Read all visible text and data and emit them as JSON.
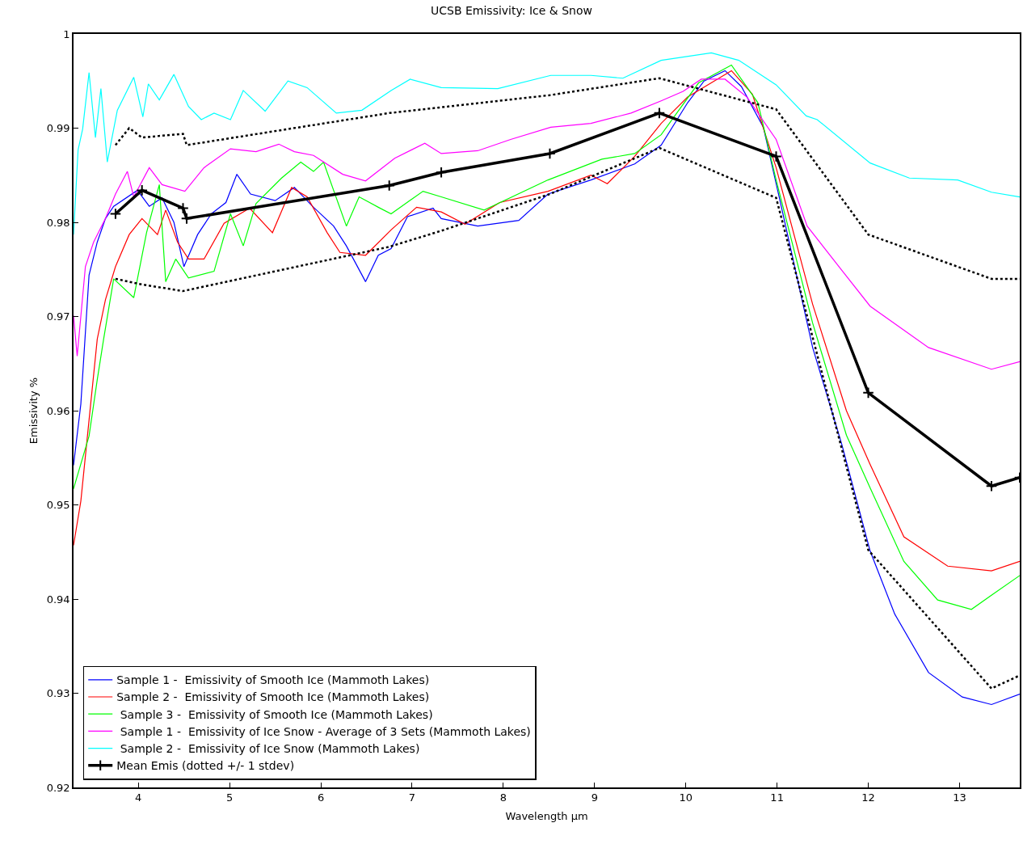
{
  "chart_data": {
    "type": "line",
    "title": "UCSB Emissivity: Ice & Snow",
    "xlabel": "Wavelength µm",
    "ylabel": "Emissivity %",
    "xlim": [
      3.29,
      13.66
    ],
    "ylim": [
      0.92,
      1
    ],
    "xticks": [
      4,
      5,
      6,
      7,
      8,
      9,
      10,
      11,
      12,
      13
    ],
    "yticks": [
      0.92,
      0.93,
      0.94,
      0.95,
      0.96,
      0.97,
      0.98,
      0.99,
      1
    ],
    "legend": "bottom left",
    "series": [
      {
        "name": "Sample 1 -  Emissivity of Smooth Ice (Mammoth Lakes)",
        "color": "#0000ff",
        "x": [
          3.29,
          3.37,
          3.46,
          3.55,
          3.64,
          3.73,
          3.99,
          4.12,
          4.26,
          4.39,
          4.5,
          4.65,
          4.8,
          4.96,
          5.08,
          5.23,
          5.5,
          5.71,
          5.92,
          6.14,
          6.28,
          6.49,
          6.63,
          6.77,
          6.95,
          7.23,
          7.32,
          7.72,
          8.17,
          8.49,
          8.96,
          9.44,
          9.73,
          10.02,
          10.2,
          10.43,
          10.61,
          10.85,
          11.03,
          11.39,
          11.71,
          12.02,
          12.29,
          12.66,
          13.03,
          13.35,
          13.66
        ],
        "values": [
          0.9542,
          0.9607,
          0.9744,
          0.9779,
          0.9804,
          0.9817,
          0.9834,
          0.9817,
          0.9826,
          0.98,
          0.9753,
          0.9787,
          0.9809,
          0.9821,
          0.9851,
          0.983,
          0.9823,
          0.9837,
          0.9816,
          0.9796,
          0.9775,
          0.9737,
          0.9765,
          0.9772,
          0.9806,
          0.9815,
          0.9804,
          0.9796,
          0.9802,
          0.983,
          0.9845,
          0.9862,
          0.9882,
          0.9927,
          0.995,
          0.9961,
          0.9944,
          0.9901,
          0.9824,
          0.9667,
          0.9564,
          0.9451,
          0.9384,
          0.9322,
          0.9296,
          0.9288,
          0.9299
        ]
      },
      {
        "name": "Sample 2 -  Emissivity of Smooth Ice (Mammoth Lakes)",
        "color": "#ff0000",
        "x": [
          3.29,
          3.37,
          3.46,
          3.55,
          3.64,
          3.75,
          3.9,
          4.04,
          4.21,
          4.3,
          4.43,
          4.55,
          4.72,
          4.94,
          5.22,
          5.47,
          5.68,
          5.85,
          6.07,
          6.21,
          6.49,
          6.77,
          7.05,
          7.32,
          7.58,
          7.96,
          8.49,
          8.96,
          9.14,
          9.44,
          9.73,
          10.02,
          10.5,
          10.73,
          10.99,
          11.39,
          11.76,
          12.02,
          12.39,
          12.87,
          13.35,
          13.66
        ],
        "values": [
          0.9457,
          0.9504,
          0.959,
          0.9676,
          0.9718,
          0.9753,
          0.9787,
          0.9804,
          0.9787,
          0.9813,
          0.9779,
          0.9761,
          0.9761,
          0.9799,
          0.9815,
          0.9789,
          0.9837,
          0.9827,
          0.9789,
          0.9768,
          0.9765,
          0.9792,
          0.9816,
          0.9811,
          0.9798,
          0.9821,
          0.9833,
          0.985,
          0.9841,
          0.987,
          0.9905,
          0.9933,
          0.9961,
          0.9936,
          0.9858,
          0.9713,
          0.96,
          0.9543,
          0.9466,
          0.9435,
          0.943,
          0.944
        ]
      },
      {
        "name": " Sample 3 -  Emissivity of Smooth Ice (Mammoth Lakes)",
        "color": "#00ff00",
        "x": [
          3.29,
          3.46,
          3.55,
          3.62,
          3.73,
          3.95,
          4.09,
          4.23,
          4.3,
          4.41,
          4.55,
          4.83,
          5.01,
          5.15,
          5.29,
          5.57,
          5.78,
          5.92,
          6.03,
          6.28,
          6.42,
          6.63,
          6.77,
          7.12,
          7.32,
          7.79,
          8.49,
          9.08,
          9.44,
          9.73,
          10.14,
          10.5,
          10.79,
          10.99,
          11.39,
          11.76,
          12.02,
          12.39,
          12.76,
          13.13,
          13.35,
          13.66
        ],
        "values": [
          0.9517,
          0.9573,
          0.9633,
          0.9676,
          0.974,
          0.972,
          0.9789,
          0.984,
          0.9737,
          0.9761,
          0.9741,
          0.9748,
          0.9809,
          0.9775,
          0.982,
          0.9847,
          0.9864,
          0.9854,
          0.9864,
          0.9796,
          0.9827,
          0.9816,
          0.9809,
          0.9833,
          0.9827,
          0.9813,
          0.9845,
          0.9867,
          0.9873,
          0.9893,
          0.9948,
          0.9967,
          0.9927,
          0.9845,
          0.9693,
          0.9574,
          0.9518,
          0.944,
          0.9399,
          0.9389,
          0.9404,
          0.9425
        ]
      },
      {
        "name": " Sample 1 -  Emissivity of Ice Snow - Average of 3 Sets (Mammoth Lakes)",
        "color": "#ff00ff",
        "x": [
          3.29,
          3.33,
          3.42,
          3.51,
          3.64,
          3.75,
          3.88,
          3.95,
          4.12,
          4.26,
          4.51,
          4.72,
          5.01,
          5.29,
          5.54,
          5.71,
          5.92,
          6.24,
          6.49,
          6.81,
          7.14,
          7.32,
          7.72,
          8.08,
          8.52,
          8.96,
          9.4,
          9.73,
          9.97,
          10.17,
          10.43,
          10.67,
          10.99,
          11.33,
          11.71,
          12.02,
          12.66,
          13.35,
          13.66
        ],
        "values": [
          0.9701,
          0.9658,
          0.9753,
          0.9779,
          0.9804,
          0.983,
          0.9854,
          0.9827,
          0.9858,
          0.984,
          0.9833,
          0.9858,
          0.9878,
          0.9875,
          0.9883,
          0.9875,
          0.9871,
          0.9851,
          0.9844,
          0.9868,
          0.9884,
          0.9873,
          0.9876,
          0.9888,
          0.9901,
          0.9905,
          0.9916,
          0.9929,
          0.9939,
          0.9952,
          0.9952,
          0.9933,
          0.9888,
          0.9796,
          0.9749,
          0.9711,
          0.9667,
          0.9644,
          0.9652
        ]
      },
      {
        "name": " Sample 2 -  Emissivity of Ice Snow (Mammoth Lakes)",
        "color": "#00ffff",
        "x": [
          3.29,
          3.34,
          3.39,
          3.46,
          3.53,
          3.59,
          3.66,
          3.77,
          3.95,
          4.05,
          4.11,
          4.23,
          4.39,
          4.55,
          4.69,
          4.83,
          5.01,
          5.15,
          5.39,
          5.64,
          5.85,
          6.17,
          6.45,
          6.77,
          6.98,
          7.32,
          7.94,
          8.52,
          8.96,
          9.31,
          9.73,
          10.28,
          10.58,
          10.99,
          11.32,
          11.44,
          12.02,
          12.45,
          12.98,
          13.35,
          13.66
        ],
        "values": [
          0.9787,
          0.9877,
          0.9899,
          0.9959,
          0.989,
          0.9942,
          0.9864,
          0.9919,
          0.9954,
          0.9912,
          0.9947,
          0.993,
          0.9957,
          0.9923,
          0.9909,
          0.9916,
          0.9909,
          0.994,
          0.9918,
          0.995,
          0.9943,
          0.9916,
          0.9919,
          0.994,
          0.9952,
          0.9943,
          0.9942,
          0.9956,
          0.9956,
          0.9953,
          0.9972,
          0.998,
          0.9972,
          0.9946,
          0.9913,
          0.9909,
          0.9863,
          0.9847,
          0.9845,
          0.9832,
          0.9827
        ]
      },
      {
        "name": "Mean Emis (dotted +/- 1 stdev)",
        "color": "#000000",
        "marker": "cross",
        "x": [
          3.75,
          4.04,
          4.49,
          4.53,
          6.75,
          7.32,
          8.51,
          9.71,
          10.99,
          12.0,
          13.35,
          13.66
        ],
        "values": [
          0.9809,
          0.9834,
          0.9815,
          0.9804,
          0.9839,
          0.9853,
          0.9873,
          0.9916,
          0.987,
          0.9619,
          0.952,
          0.9529
        ]
      },
      {
        "color": "#000000",
        "line_style": "dotted",
        "x": [
          3.75,
          3.9,
          4.04,
          4.49,
          4.53,
          6.75,
          8.51,
          9.71,
          10.99,
          12.0,
          13.35,
          13.66
        ],
        "values": [
          0.9882,
          0.99,
          0.989,
          0.9894,
          0.9882,
          0.9916,
          0.9935,
          0.9953,
          0.992,
          0.9787,
          0.974,
          0.974
        ]
      },
      {
        "color": "#000000",
        "line_style": "dotted",
        "x": [
          3.75,
          4.04,
          4.49,
          6.75,
          7.32,
          8.51,
          9.71,
          10.99,
          12.0,
          13.35,
          13.66
        ],
        "values": [
          0.974,
          0.9734,
          0.9727,
          0.9774,
          0.9791,
          0.983,
          0.9879,
          0.9826,
          0.9452,
          0.9305,
          0.9319
        ]
      }
    ]
  }
}
